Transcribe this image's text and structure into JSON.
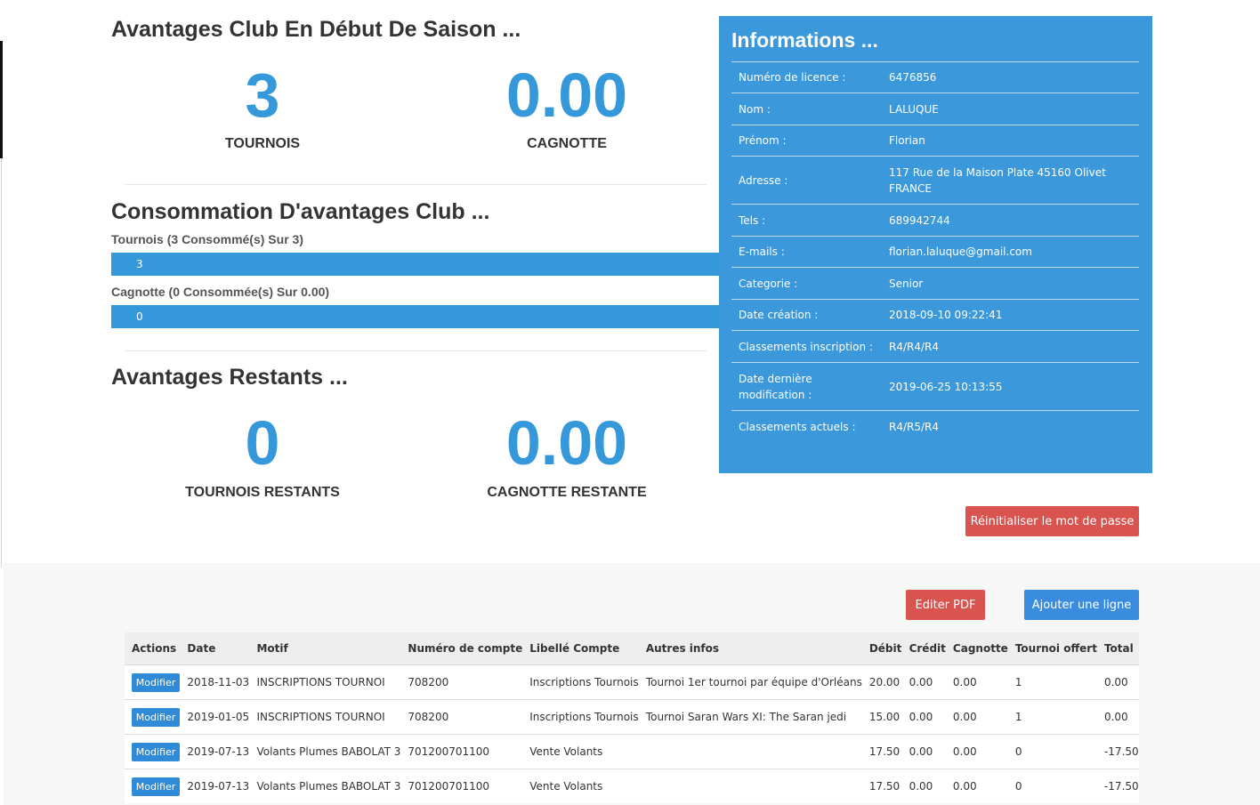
{
  "season": {
    "title": "Avantages Club En Début De Saison ...",
    "tournois_value": "3",
    "tournois_label": "TOURNOIS",
    "cagnotte_value": "0.00",
    "cagnotte_label": "CAGNOTTE"
  },
  "consumption": {
    "title": "Consommation D'avantages Club ...",
    "tournois_label": "Tournois (3 Consommé(s) Sur 3)",
    "tournois_bar_value": "3",
    "tournois_fraction": 1.0,
    "cagnotte_label": "Cagnotte (0 Consommée(s) Sur 0.00)",
    "cagnotte_bar_value": "0",
    "cagnotte_fraction": 1.0
  },
  "remaining": {
    "title": "Avantages Restants ...",
    "tournois_value": "0",
    "tournois_label": "TOURNOIS RESTANTS",
    "cagnotte_value": "0.00",
    "cagnotte_label": "CAGNOTTE RESTANTE"
  },
  "info": {
    "title": "Informations ...",
    "rows": [
      {
        "key": "Numéro de licence :",
        "value": "6476856"
      },
      {
        "key": "Nom :",
        "value": "LALUQUE"
      },
      {
        "key": "Prénom :",
        "value": "Florian"
      },
      {
        "key": "Adresse :",
        "value": "117 Rue de la Maison Plate 45160 Olivet FRANCE"
      },
      {
        "key": "Tels :",
        "value": "689942744"
      },
      {
        "key": "E-mails :",
        "value": "florian.laluque@gmail.com"
      },
      {
        "key": "Categorie :",
        "value": "Senior"
      },
      {
        "key": "Date création :",
        "value": "2018-09-10 09:22:41"
      },
      {
        "key": "Classements inscription :",
        "value": "R4/R4/R4"
      },
      {
        "key": "Date dernière modification :",
        "value": "2019-06-25 10:13:55"
      },
      {
        "key": "Classements actuels :",
        "value": "R4/R5/R4"
      }
    ]
  },
  "buttons": {
    "reset_password": "Réinitialiser le mot de passe",
    "edit_pdf": "Editer PDF",
    "add_line": "Ajouter une ligne"
  },
  "ledger": {
    "headers": [
      "Actions",
      "Date",
      "Motif",
      "Numéro de compte",
      "Libellé Compte",
      "Autres infos",
      "Débit",
      "Crédit",
      "Cagnotte",
      "Tournoi offert",
      "Total"
    ],
    "action_label": "Modifier",
    "rows": [
      {
        "date": "2018-11-03",
        "motif": "INSCRIPTIONS TOURNOI",
        "compte": "708200",
        "libelle": "Inscriptions Tournois",
        "infos": "Tournoi 1er tournoi par équipe d'Orléans",
        "debit": "20.00",
        "credit": "0.00",
        "cagnotte": "0.00",
        "tournoi": "1",
        "total": "0.00"
      },
      {
        "date": "2019-01-05",
        "motif": "INSCRIPTIONS TOURNOI",
        "compte": "708200",
        "libelle": "Inscriptions Tournois",
        "infos": "Tournoi Saran Wars XI: The Saran jedi",
        "debit": "15.00",
        "credit": "0.00",
        "cagnotte": "0.00",
        "tournoi": "1",
        "total": "0.00"
      },
      {
        "date": "2019-07-13",
        "motif": "Volants Plumes BABOLAT 3",
        "compte": "701200701100",
        "libelle": "Vente Volants",
        "infos": "",
        "debit": "17.50",
        "credit": "0.00",
        "cagnotte": "0.00",
        "tournoi": "0",
        "total": "-17.50"
      },
      {
        "date": "2019-07-13",
        "motif": "Volants Plumes BABOLAT 3",
        "compte": "701200701100",
        "libelle": "Vente Volants",
        "infos": "",
        "debit": "17.50",
        "credit": "0.00",
        "cagnotte": "0.00",
        "tournoi": "0",
        "total": "-17.50"
      }
    ]
  }
}
